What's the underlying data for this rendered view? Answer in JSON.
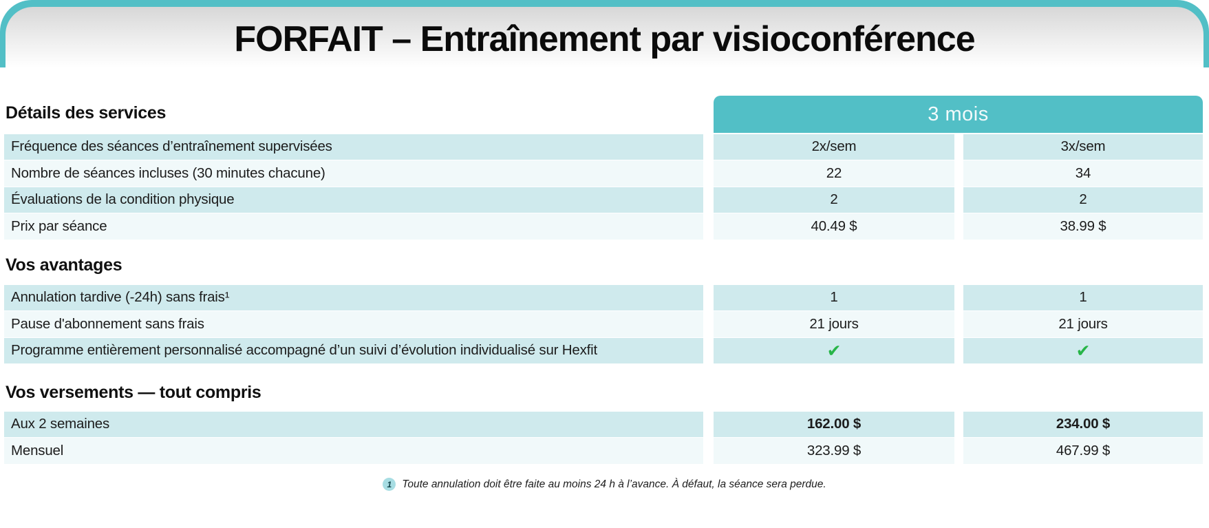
{
  "title": "FORFAIT – Entraînement par visioconférence",
  "plan_header": "3 mois",
  "colors": {
    "accent_teal": "#52bfc6",
    "row_teal": "#cfeaed",
    "row_light": "#f1f9fa",
    "check_green": "#27b548",
    "badge_bg": "#a7dde3"
  },
  "sections": [
    {
      "heading": "Détails des services",
      "rows": [
        {
          "label": "Fréquence des séances d’entraînement supervisées",
          "values": [
            "2x/sem",
            "3x/sem"
          ]
        },
        {
          "label": "Nombre de séances incluses (30 minutes chacune)",
          "values": [
            "22",
            "34"
          ]
        },
        {
          "label": "Évaluations de la condition physique",
          "values": [
            "2",
            "2"
          ]
        },
        {
          "label": "Prix par séance",
          "values": [
            "40.49 $",
            "38.99 $"
          ]
        }
      ]
    },
    {
      "heading": "Vos avantages",
      "rows": [
        {
          "label": "Annulation tardive (-24h) sans frais¹",
          "values": [
            "1",
            "1"
          ]
        },
        {
          "label": "Pause d'abonnement sans frais",
          "values": [
            "21 jours",
            "21 jours"
          ]
        },
        {
          "label": "Programme entièrement personnalisé accompagné d’un suivi d’évolution individualisé sur Hexfit",
          "values": [
            "✔",
            "✔"
          ]
        }
      ]
    },
    {
      "heading": "Vos versements — tout compris",
      "rows": [
        {
          "label": "Aux 2 semaines",
          "values": [
            "162.00 $",
            "234.00 $"
          ]
        },
        {
          "label": "Mensuel",
          "values": [
            "323.99 $",
            "467.99 $"
          ]
        }
      ]
    }
  ],
  "footnote": {
    "badge": "1",
    "text": "Toute annulation doit être faite au moins 24 h à l’avance. À défaut, la séance sera perdue."
  }
}
